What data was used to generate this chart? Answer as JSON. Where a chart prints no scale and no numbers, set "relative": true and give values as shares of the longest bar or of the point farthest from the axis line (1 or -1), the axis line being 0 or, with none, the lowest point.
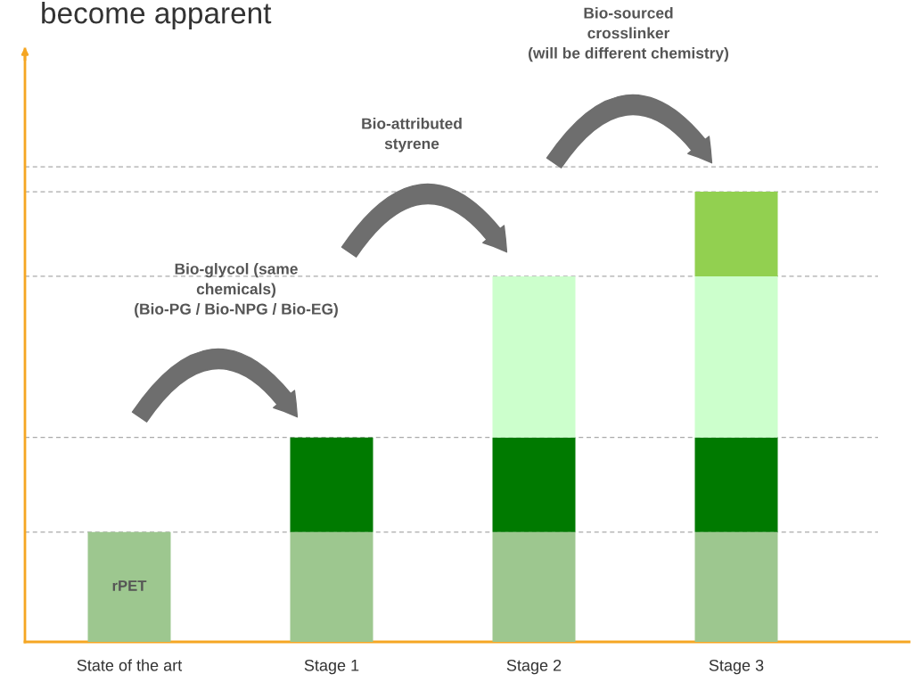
{
  "chart_data": {
    "type": "bar",
    "stacked": true,
    "relative": true,
    "title": "become apparent",
    "categories": [
      "State of the art",
      "Stage 1",
      "Stage 2",
      "Stage 3"
    ],
    "series": [
      {
        "name": "rPET",
        "color": "#9dc78f",
        "values": [
          0.244,
          0.244,
          0.244,
          0.244
        ]
      },
      {
        "color": "#007a00",
        "values": [
          null,
          0.21,
          0.21,
          0.21
        ]
      },
      {
        "color": "#ccffcc",
        "values": [
          null,
          null,
          0.358,
          0.358
        ]
      },
      {
        "color": "#92d050",
        "values": [
          null,
          null,
          null,
          0.188
        ]
      }
    ],
    "ref_lines": [
      {
        "axis": "y",
        "value": 0.244,
        "color": "#aaaaaa",
        "line_style": "dashed"
      },
      {
        "axis": "y",
        "value": 0.454,
        "color": "#aaaaaa",
        "line_style": "dashed"
      },
      {
        "axis": "y",
        "value": 0.812,
        "color": "#aaaaaa",
        "line_style": "dashed"
      },
      {
        "axis": "y",
        "value": 1.0,
        "color": "#aaaaaa",
        "line_style": "dashed"
      },
      {
        "axis": "y",
        "value": 1.055,
        "color": "#aaaaaa",
        "line_style": "dashed"
      }
    ],
    "annotations": [
      "Bio-glycol (same\nchemicals)\n(Bio-PG / Bio-NPG / Bio-EG)",
      "Bio-attributed\nstyrene",
      "Bio-sourced\ncrosslinker\n(will be different chemistry)"
    ],
    "grid": false,
    "legend": false
  }
}
